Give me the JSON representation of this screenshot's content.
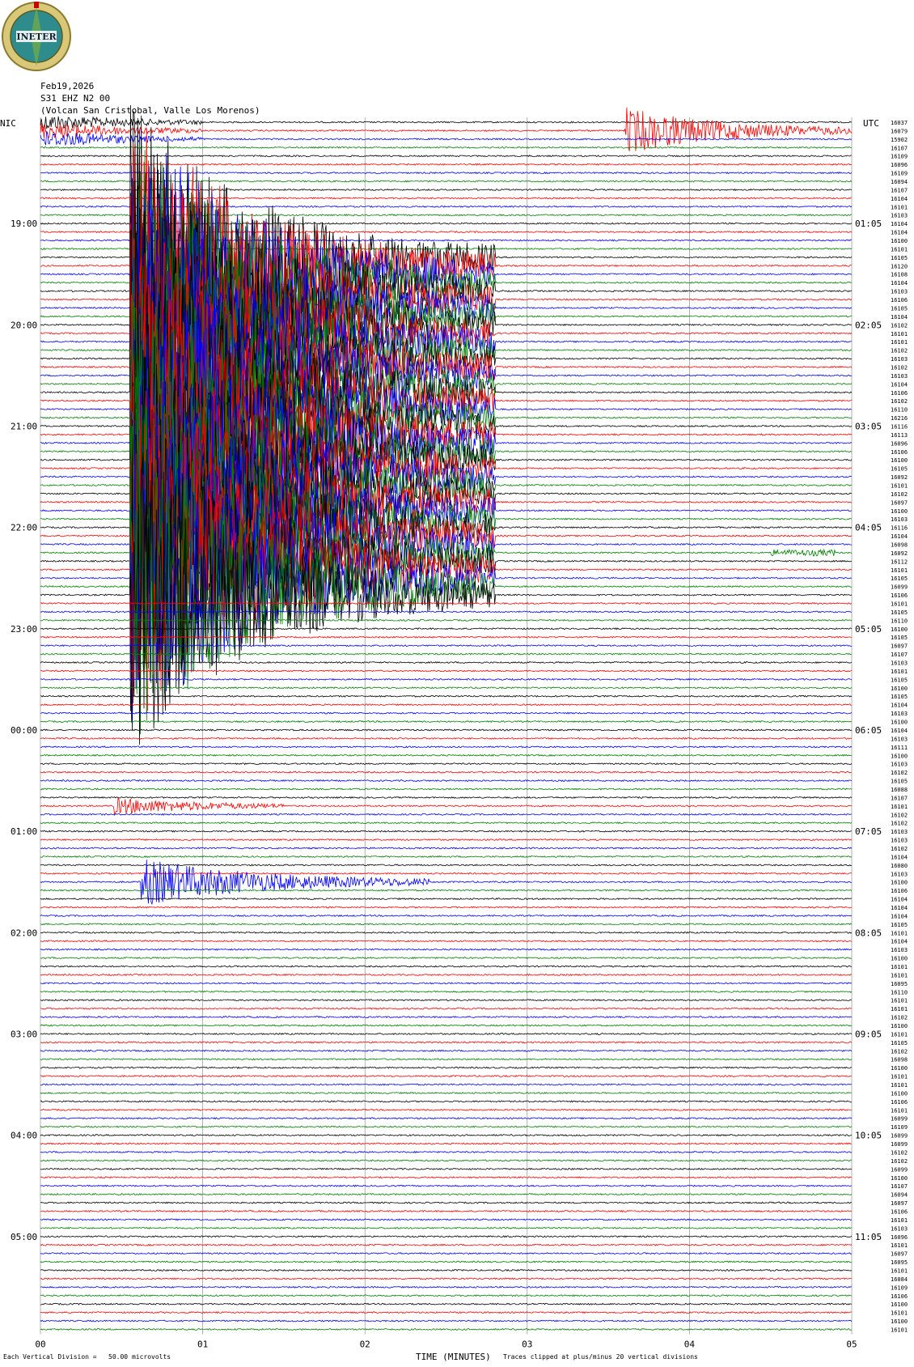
{
  "header": {
    "date": "Feb19,2026",
    "station": "S31 EHZ N2 00",
    "location": "(Volcan San Cristobal, Valle Los Morenos)",
    "logo_text": "INETER",
    "left_zone": "NIC",
    "right_zone": "UTC"
  },
  "footer": {
    "scale_note": "Each Vertical Division =   50.00 microvolts",
    "xlabel": "TIME (MINUTES)",
    "clip_note": "Traces clipped at plus/minus 20 vertical divisions"
  },
  "colors": {
    "trace_cycle": [
      "#000000",
      "#ff0000",
      "#0000ff",
      "#008000"
    ],
    "grid": "#808080"
  },
  "chart_data": {
    "type": "line",
    "title": "S31 EHZ N2 00",
    "xlabel": "TIME (MINUTES)",
    "x_ticks": [
      "00",
      "01",
      "02",
      "03",
      "04",
      "05"
    ],
    "xlim": [
      0,
      5
    ],
    "trace_count": 144,
    "minutes_per_trace": 5,
    "left_time_labels": [
      "19:00",
      "20:00",
      "21:00",
      "22:00",
      "23:00",
      "00:00",
      "01:00",
      "02:00",
      "03:00",
      "04:00",
      "05:00"
    ],
    "right_time_labels": [
      "01:05",
      "02:05",
      "03:05",
      "04:05",
      "05:05",
      "06:05",
      "07:05",
      "08:05",
      "09:05",
      "10:05",
      "11:05"
    ],
    "hour_label_trace_indexes": [
      12,
      24,
      36,
      48,
      60,
      72,
      84,
      96,
      108,
      120,
      132
    ],
    "right_values": [
      16037,
      16079,
      15902,
      16107,
      16109,
      16096,
      16109,
      16094,
      16107,
      16104,
      16101,
      16103,
      16104,
      16104,
      16100,
      16101,
      16105,
      16120,
      16108,
      16104,
      16103,
      16106,
      16105,
      16104,
      16102,
      16101,
      16101,
      16102,
      16103,
      16102,
      16103,
      16104,
      16106,
      16102,
      16110,
      16216,
      16116,
      16113,
      16096,
      16106,
      16100,
      16105,
      16092,
      16101,
      16102,
      16097,
      16100,
      16103,
      16116,
      16104,
      16098,
      16092,
      16112,
      16101,
      16105,
      16099,
      16106,
      16101,
      16105,
      16110,
      16100,
      16105,
      16097,
      16107,
      16103,
      16101,
      16105,
      16100,
      16105,
      16104,
      16103,
      16100,
      16104,
      16103,
      16111,
      16100,
      16103,
      16102,
      16105,
      16088,
      16107,
      16101,
      16102,
      16102,
      16103,
      16103,
      16102,
      16104,
      16080,
      16103,
      16100,
      16106,
      16104,
      16104,
      16104,
      16105,
      16101,
      16104,
      16103,
      16100,
      16101,
      16101,
      16095,
      16110,
      16101,
      16101,
      16102,
      16100,
      16101,
      16105,
      16102,
      16098,
      16100,
      16101,
      16101,
      16100,
      16106,
      16101,
      16099,
      16109,
      16099,
      16099,
      16102,
      16102,
      16099,
      16100,
      16107,
      16094,
      16097,
      16106,
      16101,
      16103,
      16096,
      16101,
      16097,
      16095,
      16101,
      16084,
      16109,
      16106,
      16100,
      16101,
      16100,
      16101
    ],
    "events": [
      {
        "trace_start": 0,
        "trace_end": 2,
        "t_start_min": 0.0,
        "t_end_min": 1.0,
        "amplitude": "moderate"
      },
      {
        "trace_start": 1,
        "trace_end": 1,
        "t_start_min": 3.6,
        "t_end_min": 5.0,
        "amplitude": "large"
      },
      {
        "trace_start": 16,
        "trace_end": 56,
        "t_start_min": 0.55,
        "t_end_min": 2.8,
        "amplitude": "clipped"
      },
      {
        "trace_start": 81,
        "trace_end": 81,
        "t_start_min": 0.45,
        "t_end_min": 1.5,
        "amplitude": "moderate"
      },
      {
        "trace_start": 90,
        "trace_end": 90,
        "t_start_min": 0.62,
        "t_end_min": 2.4,
        "amplitude": "large"
      },
      {
        "trace_start": 51,
        "trace_end": 51,
        "t_start_min": 4.5,
        "t_end_min": 4.9,
        "amplitude": "small"
      }
    ]
  }
}
